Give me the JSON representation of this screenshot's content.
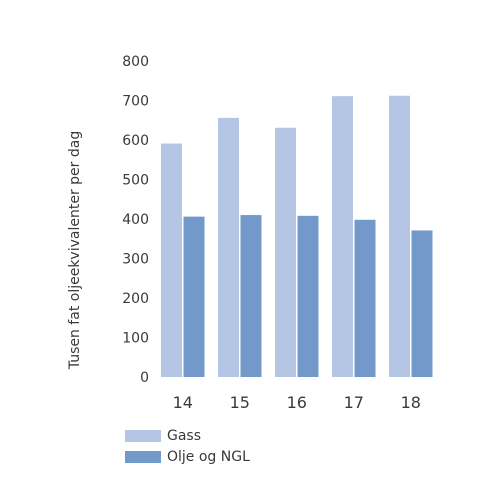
{
  "chart_data": {
    "type": "bar",
    "ylabel": "Tusen fat oljeekvivalenter per dag",
    "xlabel": "",
    "categories": [
      "14",
      "15",
      "16",
      "17",
      "18"
    ],
    "ylim": [
      0,
      800
    ],
    "yticks": [
      0,
      100,
      200,
      300,
      400,
      500,
      600,
      700,
      800
    ],
    "grid": false,
    "legend_position": "bottom-left",
    "series": [
      {
        "name": "Gass",
        "color": "#b4c6e4",
        "values": [
          591,
          656,
          631,
          711,
          712
        ]
      },
      {
        "name": "Olje og NGL",
        "color": "#7299c9",
        "values": [
          406,
          410,
          408,
          398,
          371
        ]
      }
    ]
  }
}
